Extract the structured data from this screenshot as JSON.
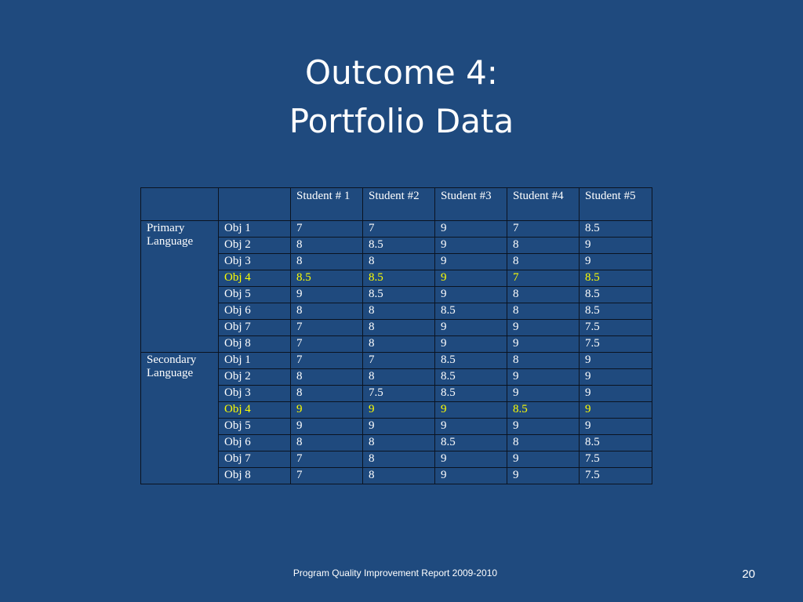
{
  "slide": {
    "title_line1": "Outcome 4:",
    "title_line2": "Portfolio Data",
    "footer": "Program Quality Improvement Report 2009-2010",
    "page_number": "20"
  },
  "colors": {
    "background": "#1f4a7e",
    "text": "#ffffff",
    "highlight": "#ffff00"
  },
  "table": {
    "headers": [
      "",
      "",
      "Student # 1",
      "Student #2",
      "Student #3",
      "Student #4",
      "Student #5"
    ],
    "groups": [
      {
        "label": "Primary Language",
        "rows": [
          {
            "obj": "Obj 1",
            "values": [
              "7",
              "7",
              "9",
              "7",
              "8.5"
            ],
            "highlight": false
          },
          {
            "obj": "Obj 2",
            "values": [
              "8",
              "8.5",
              "9",
              "8",
              "9"
            ],
            "highlight": false
          },
          {
            "obj": "Obj 3",
            "values": [
              "8",
              "8",
              "9",
              "8",
              "9"
            ],
            "highlight": false
          },
          {
            "obj": "Obj 4",
            "values": [
              "8.5",
              "8.5",
              "9",
              "7",
              "8.5"
            ],
            "highlight": true
          },
          {
            "obj": "Obj 5",
            "values": [
              "9",
              "8.5",
              "9",
              "8",
              "8.5"
            ],
            "highlight": false
          },
          {
            "obj": "Obj 6",
            "values": [
              "8",
              "8",
              "8.5",
              "8",
              "8.5"
            ],
            "highlight": false
          },
          {
            "obj": "Obj 7",
            "values": [
              "7",
              "8",
              "9",
              "9",
              "7.5"
            ],
            "highlight": false
          },
          {
            "obj": "Obj 8",
            "values": [
              "7",
              "8",
              "9",
              "9",
              "7.5"
            ],
            "highlight": false
          }
        ]
      },
      {
        "label": "Secondary Language",
        "rows": [
          {
            "obj": "Obj 1",
            "values": [
              "7",
              "7",
              "8.5",
              "8",
              "9"
            ],
            "highlight": false
          },
          {
            "obj": "Obj 2",
            "values": [
              "8",
              "8",
              "8.5",
              "9",
              "9"
            ],
            "highlight": false
          },
          {
            "obj": "Obj 3",
            "values": [
              "8",
              "7.5",
              "8.5",
              "9",
              "9"
            ],
            "highlight": false
          },
          {
            "obj": "Obj 4",
            "values": [
              "9",
              "9",
              "9",
              "8.5",
              "9"
            ],
            "highlight": true
          },
          {
            "obj": "Obj 5",
            "values": [
              "9",
              "9",
              "9",
              "9",
              "9"
            ],
            "highlight": false
          },
          {
            "obj": "Obj 6",
            "values": [
              "8",
              "8",
              "8.5",
              "8",
              "8.5"
            ],
            "highlight": false
          },
          {
            "obj": "Obj 7",
            "values": [
              "7",
              "8",
              "9",
              "9",
              "7.5"
            ],
            "highlight": false
          },
          {
            "obj": "Obj 8",
            "values": [
              "7",
              "8",
              "9",
              "9",
              "7.5"
            ],
            "highlight": false
          }
        ]
      }
    ]
  }
}
